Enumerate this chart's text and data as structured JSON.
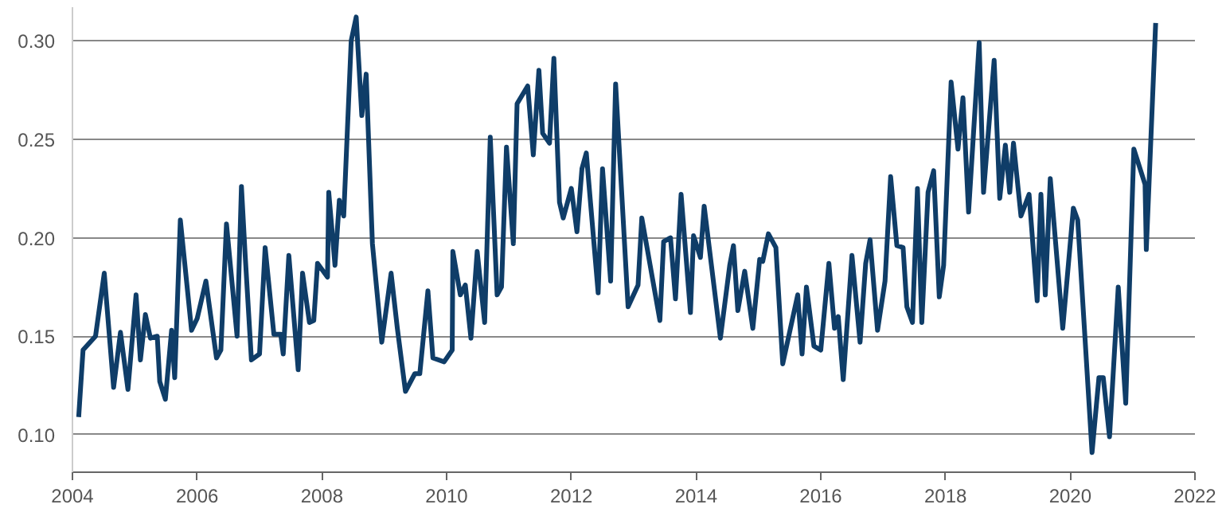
{
  "chart_data": {
    "type": "line",
    "xlim": [
      2004,
      2022
    ],
    "ylim": [
      0.081,
      0.317
    ],
    "xticks": [
      2004,
      2006,
      2008,
      2010,
      2012,
      2014,
      2016,
      2018,
      2020,
      2022
    ],
    "yticks": [
      {
        "value": 0.1,
        "label": "0.10"
      },
      {
        "value": 0.15,
        "label": "0.15"
      },
      {
        "value": 0.2,
        "label": "0.20"
      },
      {
        "value": 0.25,
        "label": "0.25"
      },
      {
        "value": 0.3,
        "label": "0.30"
      }
    ],
    "grid": "y",
    "marker": "none",
    "line_style": "solid",
    "series": [
      {
        "color": "#0f3d68",
        "x": [
          2004.1,
          2004.17,
          2004.37,
          2004.51,
          2004.66,
          2004.77,
          2004.89,
          2005.02,
          2005.09,
          2005.17,
          2005.25,
          2005.36,
          2005.4,
          2005.49,
          2005.59,
          2005.64,
          2005.73,
          2005.91,
          2006.0,
          2006.14,
          2006.31,
          2006.38,
          2006.47,
          2006.64,
          2006.71,
          2006.77,
          2006.87,
          2007.0,
          2007.09,
          2007.23,
          2007.34,
          2007.38,
          2007.47,
          2007.62,
          2007.69,
          2007.8,
          2007.87,
          2007.93,
          2008.09,
          2008.11,
          2008.21,
          2008.28,
          2008.35,
          2008.47,
          2008.55,
          2008.64,
          2008.71,
          2008.81,
          2008.96,
          2009.11,
          2009.21,
          2009.34,
          2009.49,
          2009.57,
          2009.7,
          2009.78,
          2009.96,
          2010.09,
          2010.1,
          2010.22,
          2010.3,
          2010.39,
          2010.49,
          2010.61,
          2010.7,
          2010.81,
          2010.88,
          2010.96,
          2011.07,
          2011.13,
          2011.3,
          2011.39,
          2011.48,
          2011.54,
          2011.65,
          2011.72,
          2011.81,
          2011.87,
          2012.0,
          2012.09,
          2012.17,
          2012.24,
          2012.43,
          2012.5,
          2012.63,
          2012.71,
          2012.91,
          2013.07,
          2013.13,
          2013.42,
          2013.48,
          2013.59,
          2013.67,
          2013.76,
          2013.91,
          2013.96,
          2014.07,
          2014.13,
          2014.39,
          2014.54,
          2014.6,
          2014.67,
          2014.78,
          2014.91,
          2015.02,
          2015.07,
          2015.16,
          2015.28,
          2015.39,
          2015.63,
          2015.7,
          2015.77,
          2015.89,
          2016.0,
          2016.13,
          2016.22,
          2016.28,
          2016.36,
          2016.5,
          2016.63,
          2016.72,
          2016.79,
          2016.91,
          2017.03,
          2017.12,
          2017.22,
          2017.32,
          2017.38,
          2017.47,
          2017.55,
          2017.62,
          2017.72,
          2017.81,
          2017.9,
          2017.97,
          2018.09,
          2018.2,
          2018.28,
          2018.37,
          2018.54,
          2018.61,
          2018.78,
          2018.87,
          2018.96,
          2019.03,
          2019.09,
          2019.21,
          2019.34,
          2019.47,
          2019.53,
          2019.6,
          2019.68,
          2019.88,
          2020.05,
          2020.12,
          2020.35,
          2020.46,
          2020.53,
          2020.63,
          2020.77,
          2020.89,
          2021.02,
          2021.2,
          2021.22,
          2021.37
        ],
        "values": [
          0.109,
          0.143,
          0.15,
          0.182,
          0.124,
          0.152,
          0.123,
          0.171,
          0.138,
          0.161,
          0.149,
          0.15,
          0.127,
          0.118,
          0.153,
          0.129,
          0.209,
          0.153,
          0.159,
          0.178,
          0.139,
          0.143,
          0.207,
          0.15,
          0.226,
          0.191,
          0.138,
          0.141,
          0.195,
          0.151,
          0.151,
          0.141,
          0.191,
          0.133,
          0.182,
          0.157,
          0.158,
          0.187,
          0.18,
          0.223,
          0.186,
          0.219,
          0.211,
          0.3,
          0.312,
          0.262,
          0.283,
          0.197,
          0.147,
          0.182,
          0.154,
          0.122,
          0.131,
          0.131,
          0.173,
          0.139,
          0.137,
          0.143,
          0.193,
          0.171,
          0.176,
          0.149,
          0.193,
          0.157,
          0.251,
          0.171,
          0.175,
          0.246,
          0.197,
          0.268,
          0.277,
          0.242,
          0.285,
          0.253,
          0.248,
          0.291,
          0.218,
          0.21,
          0.225,
          0.203,
          0.235,
          0.243,
          0.172,
          0.235,
          0.178,
          0.278,
          0.165,
          0.176,
          0.21,
          0.158,
          0.198,
          0.2,
          0.169,
          0.222,
          0.162,
          0.201,
          0.19,
          0.216,
          0.149,
          0.186,
          0.196,
          0.163,
          0.183,
          0.154,
          0.189,
          0.188,
          0.202,
          0.195,
          0.136,
          0.171,
          0.141,
          0.175,
          0.145,
          0.143,
          0.187,
          0.154,
          0.16,
          0.128,
          0.191,
          0.147,
          0.187,
          0.199,
          0.153,
          0.178,
          0.231,
          0.196,
          0.195,
          0.165,
          0.157,
          0.225,
          0.157,
          0.223,
          0.234,
          0.17,
          0.186,
          0.279,
          0.245,
          0.271,
          0.213,
          0.299,
          0.223,
          0.29,
          0.22,
          0.247,
          0.223,
          0.248,
          0.211,
          0.222,
          0.168,
          0.222,
          0.171,
          0.23,
          0.154,
          0.215,
          0.209,
          0.091,
          0.129,
          0.129,
          0.099,
          0.175,
          0.116,
          0.245,
          0.227,
          0.194,
          0.309
        ]
      }
    ]
  }
}
